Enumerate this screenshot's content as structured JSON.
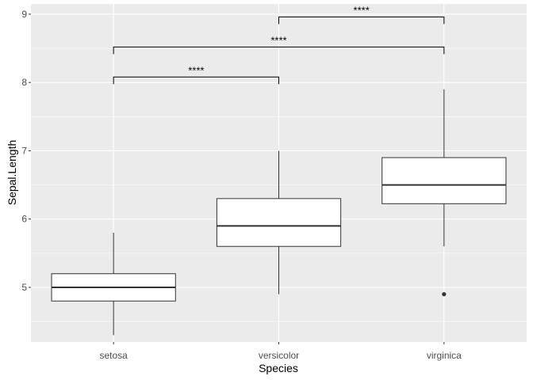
{
  "chart_data": {
    "type": "boxplot",
    "xlabel": "Species",
    "ylabel": "Sepal.Length",
    "ylim": [
      4.2,
      9.15
    ],
    "y_ticks": [
      5,
      6,
      7,
      8,
      9
    ],
    "y_tick_labels": [
      "5",
      "6",
      "7",
      "8",
      "9"
    ],
    "grid": true,
    "categories": [
      "setosa",
      "versicolor",
      "virginica"
    ],
    "boxes": [
      {
        "category": "setosa",
        "whisker_low": 4.3,
        "q1": 4.8,
        "median": 5.0,
        "q3": 5.2,
        "whisker_high": 5.8,
        "outliers": []
      },
      {
        "category": "versicolor",
        "whisker_low": 4.9,
        "q1": 5.6,
        "median": 5.9,
        "q3": 6.3,
        "whisker_high": 7.0,
        "outliers": []
      },
      {
        "category": "virginica",
        "whisker_low": 5.6,
        "q1": 6.225,
        "median": 6.5,
        "q3": 6.9,
        "whisker_high": 7.9,
        "outliers": [
          4.9
        ]
      }
    ],
    "comparisons": [
      {
        "from": "setosa",
        "to": "versicolor",
        "y": 8.08,
        "label": "****"
      },
      {
        "from": "setosa",
        "to": "virginica",
        "y": 8.52,
        "label": "****"
      },
      {
        "from": "versicolor",
        "to": "virginica",
        "y": 8.96,
        "label": "****"
      }
    ],
    "colors": {
      "panel": "#ebebeb",
      "grid_major": "#ffffff",
      "box_fill": "#ffffff",
      "box_stroke": "#333333",
      "bracket": "#000000",
      "outlier": "#333333",
      "tick_text": "#4d4d4d"
    }
  }
}
